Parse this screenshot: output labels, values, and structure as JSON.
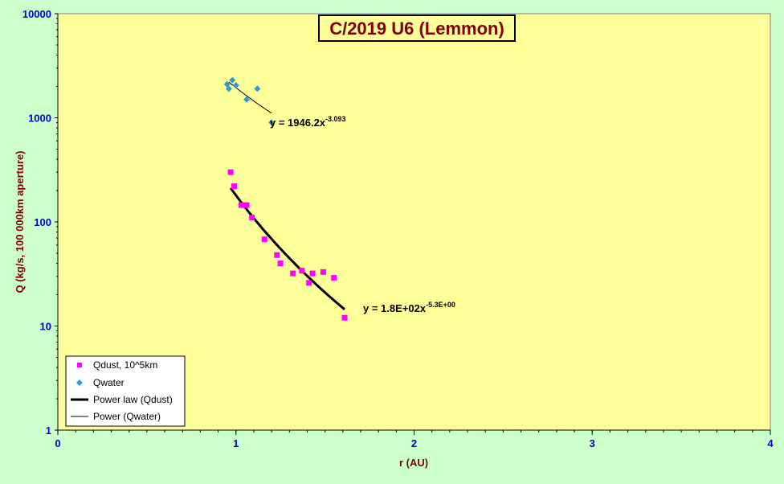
{
  "chart_data": {
    "type": "scatter",
    "title": "C/2019 U6 (Lemmon)",
    "xlabel": "r (AU)",
    "ylabel": "Q (kg/s, 100 000km aperture)",
    "xlim": [
      0,
      4
    ],
    "ylim": [
      1,
      10000
    ],
    "yscale": "log",
    "x_ticks": [
      "0",
      "1",
      "2",
      "3",
      "4"
    ],
    "y_ticks": [
      "1",
      "10",
      "100",
      "1000",
      "10000"
    ],
    "grid": false,
    "legend_position": "bottom-left",
    "series": [
      {
        "name": "Qdust, 10^5km",
        "marker": "square",
        "color": "#ff00ff",
        "points": [
          [
            0.97,
            300
          ],
          [
            0.99,
            220
          ],
          [
            1.03,
            145
          ],
          [
            1.06,
            145
          ],
          [
            1.09,
            110
          ],
          [
            1.16,
            68
          ],
          [
            1.23,
            48
          ],
          [
            1.25,
            40
          ],
          [
            1.32,
            32
          ],
          [
            1.37,
            34
          ],
          [
            1.41,
            26
          ],
          [
            1.43,
            32
          ],
          [
            1.49,
            33
          ],
          [
            1.55,
            29
          ],
          [
            1.61,
            12
          ]
        ]
      },
      {
        "name": "Qwater",
        "marker": "diamond",
        "color": "#3399cc",
        "points": [
          [
            0.95,
            2100
          ],
          [
            0.96,
            1900
          ],
          [
            0.98,
            2300
          ],
          [
            1.0,
            2050
          ],
          [
            1.06,
            1500
          ],
          [
            1.12,
            1900
          ],
          [
            1.2,
            900
          ]
        ]
      },
      {
        "name": "Power law (Qdust)",
        "type": "line",
        "color": "#000000",
        "line_width": "thick",
        "coefficient": 180,
        "exponent": -5.3,
        "x_range": [
          0.97,
          1.61
        ]
      },
      {
        "name": "Power (Qwater)",
        "type": "line",
        "color": "#000000",
        "line_width": "thin",
        "coefficient": 1946.2,
        "exponent": -3.093,
        "x_range": [
          0.96,
          1.2
        ]
      }
    ],
    "annotations": [
      {
        "base": "y = 1946.2x",
        "sup": "-3.093",
        "near": "water trendline"
      },
      {
        "base": "y = 1.8E+02x",
        "sup": "-5.3E+00",
        "near": "dust trendline"
      }
    ]
  }
}
